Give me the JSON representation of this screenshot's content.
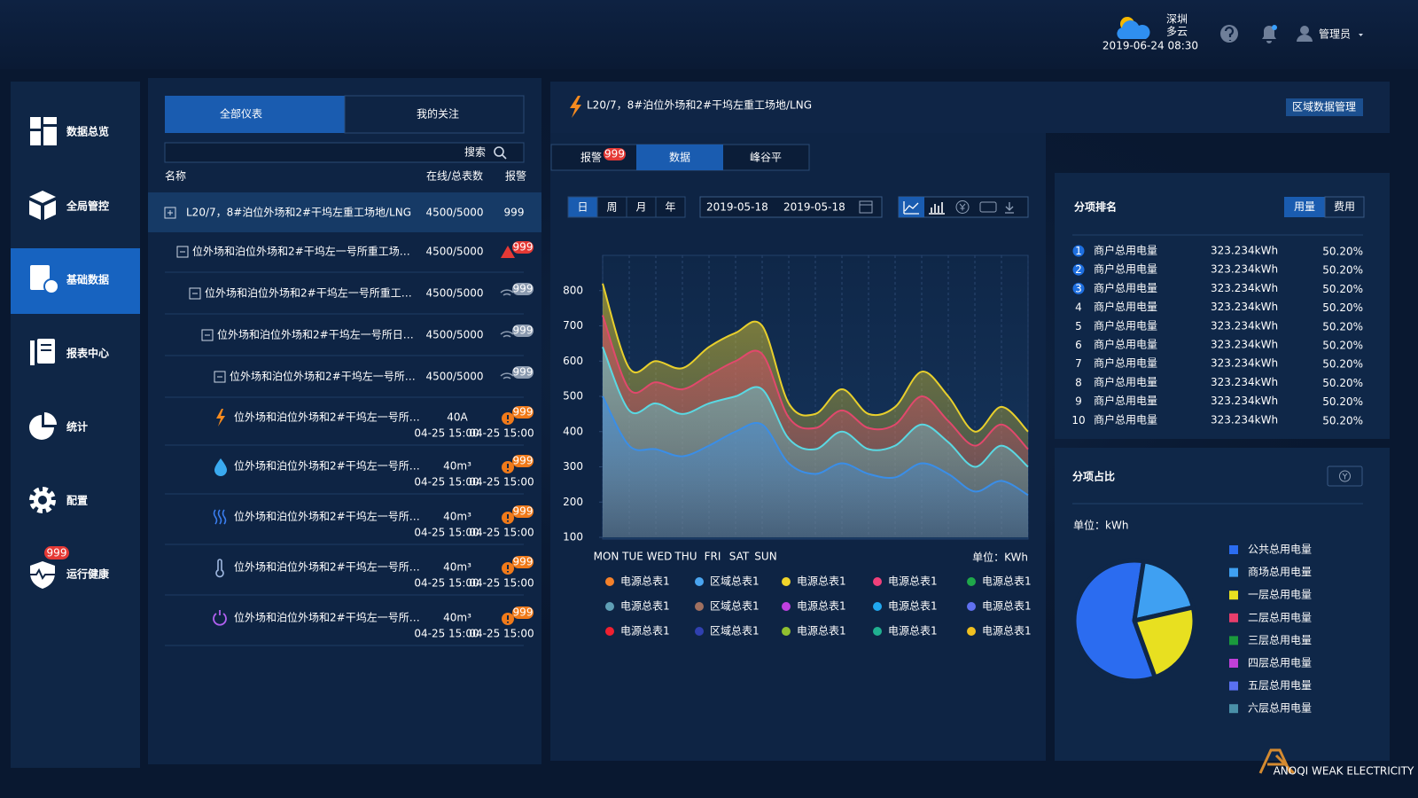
{
  "header": {
    "city": "深圳",
    "weather": "多云",
    "datetime": "2019-06-24 08:30",
    "user": "管理员"
  },
  "sidebar": {
    "items": [
      "数据总览",
      "全局管控",
      "基础数据",
      "报表中心",
      "统计",
      "配置",
      "运行健康"
    ],
    "badge": "999"
  },
  "meters": {
    "tabs": [
      "全部仪表",
      "我的关注"
    ],
    "search": "搜索",
    "columns": [
      "名称",
      "在线/总表数",
      "报警"
    ],
    "groups": [
      {
        "name": "L20/7，8#泊位外场和2#干坞左重工场地/LNG",
        "count": "4500/5000",
        "alarm": "999"
      },
      {
        "name": "位外场和泊位外场和2#干坞左一号所重工场…",
        "count": "4500/5000",
        "alarm": "999"
      },
      {
        "name": "位外场和泊位外场和2#干坞左一号所重工…",
        "count": "4500/5000",
        "alarm": "999"
      },
      {
        "name": "位外场和泊位外场和2#干坞左一号所日…",
        "count": "4500/5000",
        "alarm": "999"
      },
      {
        "name": "位外场和泊位外场和2#干坞左一号所…",
        "count": "4500/5000",
        "alarm": "999"
      }
    ],
    "items": [
      {
        "name": "位外场和泊位外场和2#干坞左一号所…",
        "reading": "40A",
        "reading_time": "04-25 15:00",
        "alarm_time": "04-25 15:00",
        "alarm": "999"
      },
      {
        "name": "位外场和泊位外场和2#干坞左一号所…",
        "reading": "40m³",
        "reading_time": "04-25 15:00",
        "alarm_time": "04-25 15:00",
        "alarm": "999"
      },
      {
        "name": "位外场和泊位外场和2#干坞左一号所…",
        "reading": "40m³",
        "reading_time": "04-25 15:00",
        "alarm_time": "04-25 15:00",
        "alarm": "999"
      },
      {
        "name": "位外场和泊位外场和2#干坞左一号所…",
        "reading": "40m³",
        "reading_time": "04-25 15:00",
        "alarm_time": "04-25 15:00",
        "alarm": "999"
      },
      {
        "name": "位外场和泊位外场和2#干坞左一号所…",
        "reading": "40m³",
        "reading_time": "04-25 15:00",
        "alarm_time": "04-25 15:00",
        "alarm": "999"
      }
    ]
  },
  "main": {
    "title": "L20/7，8#泊位外场和2#干坞左重工场地/LNG",
    "manage": "区域数据管理",
    "tabs": [
      "报警",
      "数据",
      "峰谷平"
    ],
    "tab_badge": "999",
    "periods": [
      "日",
      "周",
      "月",
      "年"
    ],
    "date_from": "2019-05-18",
    "date_to": "2019-05-18"
  },
  "ranking": {
    "title": "分项排名",
    "toggles": [
      "用量",
      "费用"
    ],
    "rows": [
      {
        "rank": 1,
        "name": "商户总用电量",
        "value": "323.234kWh",
        "percent": "50.20%"
      },
      {
        "rank": 2,
        "name": "商户总用电量",
        "value": "323.234kWh",
        "percent": "50.20%"
      },
      {
        "rank": 3,
        "name": "商户总用电量",
        "value": "323.234kWh",
        "percent": "50.20%"
      },
      {
        "rank": 4,
        "name": "商户总用电量",
        "value": "323.234kWh",
        "percent": "50.20%"
      },
      {
        "rank": 5,
        "name": "商户总用电量",
        "value": "323.234kWh",
        "percent": "50.20%"
      },
      {
        "rank": 6,
        "name": "商户总用电量",
        "value": "323.234kWh",
        "percent": "50.20%"
      },
      {
        "rank": 7,
        "name": "商户总用电量",
        "value": "323.234kWh",
        "percent": "50.20%"
      },
      {
        "rank": 8,
        "name": "商户总用电量",
        "value": "323.234kWh",
        "percent": "50.20%"
      },
      {
        "rank": 9,
        "name": "商户总用电量",
        "value": "323.234kWh",
        "percent": "50.20%"
      },
      {
        "rank": 10,
        "name": "商户总用电量",
        "value": "323.234kWh",
        "percent": "50.20%"
      }
    ]
  },
  "logo": "ANOQI WEAK ELECTRICITY",
  "chart_data": [
    {
      "type": "area",
      "unit_label": "单位：KWh",
      "categories": [
        "MON",
        "TUE",
        "WED",
        "THU",
        "FRI",
        "SAT",
        "SUN",
        null,
        null,
        null,
        null,
        null,
        null,
        null,
        null,
        null,
        null
      ],
      "series": [
        {
          "color": "#e8cf2c",
          "values": [
            820,
            580,
            600,
            580,
            640,
            680,
            700,
            480,
            450,
            520,
            450,
            470,
            570,
            500,
            400,
            470,
            400
          ]
        },
        {
          "color": "#e2486c",
          "values": [
            730,
            520,
            540,
            520,
            560,
            600,
            620,
            440,
            410,
            460,
            410,
            420,
            500,
            430,
            360,
            420,
            350
          ]
        },
        {
          "color": "#5ad8e2",
          "values": [
            640,
            460,
            480,
            450,
            480,
            500,
            520,
            380,
            350,
            400,
            350,
            360,
            420,
            370,
            300,
            360,
            300
          ]
        },
        {
          "color": "#3a8ee8",
          "values": [
            500,
            360,
            350,
            330,
            360,
            400,
            420,
            310,
            280,
            310,
            280,
            270,
            310,
            280,
            230,
            260,
            220
          ]
        }
      ],
      "legend": [
        {
          "name": "电源总表1",
          "color": "#f5812a"
        },
        {
          "name": "区域总表1",
          "color": "#4aa5f0"
        },
        {
          "name": "电源总表1",
          "color": "#f0d42a"
        },
        {
          "name": "电源总表1",
          "color": "#f0407a"
        },
        {
          "name": "电源总表1",
          "color": "#1fa84a"
        },
        {
          "name": "电源总表1",
          "color": "#5f9fb5"
        },
        {
          "name": "区域总表1",
          "color": "#a07060"
        },
        {
          "name": "电源总表1",
          "color": "#c040e0"
        },
        {
          "name": "电源总表1",
          "color": "#20a8f0"
        },
        {
          "name": "电源总表1",
          "color": "#6070f0"
        },
        {
          "name": "电源总表1",
          "color": "#f02030"
        },
        {
          "name": "区域总表1",
          "color": "#3040b0"
        },
        {
          "name": "电源总表1",
          "color": "#90c030"
        },
        {
          "name": "电源总表1",
          "color": "#20b090"
        },
        {
          "name": "电源总表1",
          "color": "#f0c020"
        }
      ],
      "ylim": [
        100,
        900
      ],
      "yticks": [
        100,
        200,
        300,
        400,
        500,
        600,
        700,
        800
      ],
      "grid": true
    },
    {
      "type": "pie",
      "title": "分项占比",
      "unit_label": "单位：kWh",
      "categories": [
        "公共总用电量",
        "商场总用电量",
        "一层总用电量",
        "二层总用电量",
        "三层总用电量",
        "四层总用电量",
        "五层总用电量",
        "六层总用电量"
      ],
      "values": [
        58,
        19,
        23,
        0,
        0,
        0,
        0,
        0
      ],
      "colors": [
        "#2b6cf0",
        "#3fa0f2",
        "#e8e020",
        "#e83e6c",
        "#1a9a3c",
        "#c040d8",
        "#5a70f0",
        "#4a90a8"
      ]
    }
  ]
}
